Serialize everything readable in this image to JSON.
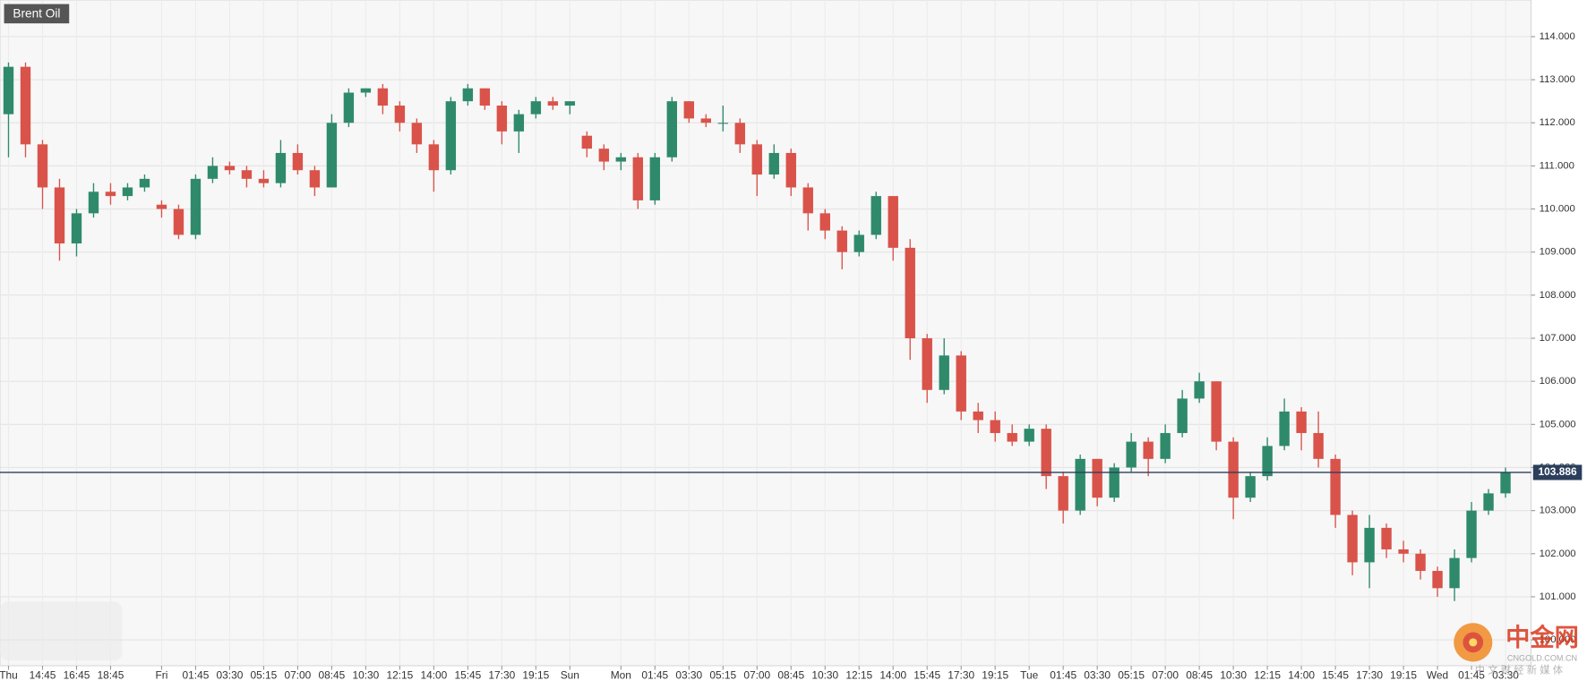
{
  "chart_data": {
    "type": "candlestick",
    "title": "Brent Oil",
    "categories": [
      "Thu",
      null,
      "14:45",
      null,
      "16:45",
      null,
      "18:45",
      null,
      null,
      "Fri",
      null,
      "01:45",
      null,
      "03:30",
      null,
      "05:15",
      null,
      "07:00",
      null,
      "08:45",
      null,
      "10:30",
      null,
      "12:15",
      null,
      "14:00",
      null,
      "15:45",
      null,
      "17:30",
      null,
      "19:15",
      null,
      "Sun",
      null,
      null,
      "Mon",
      null,
      "01:45",
      null,
      "03:30",
      null,
      "05:15",
      null,
      "07:00",
      null,
      "08:45",
      null,
      "10:30",
      null,
      "12:15",
      null,
      "14:00",
      null,
      "15:45",
      null,
      "17:30",
      null,
      "19:15",
      null,
      "Tue",
      null,
      "01:45",
      null,
      "03:30",
      null,
      "05:15",
      null,
      "07:00",
      null,
      "08:45",
      null,
      "10:30",
      null,
      "12:15",
      null,
      "14:00",
      null,
      "15:45",
      null,
      "17:30",
      null,
      "19:15",
      null,
      "Wed",
      null,
      "01:45",
      null,
      "03:30",
      null
    ],
    "open": [
      112.2,
      113.3,
      111.5,
      110.5,
      109.2,
      109.9,
      110.4,
      110.3,
      110.5,
      110.1,
      110.0,
      109.4,
      110.7,
      111.0,
      110.9,
      110.7,
      110.6,
      111.3,
      110.9,
      110.5,
      112.0,
      112.7,
      112.8,
      112.4,
      112.0,
      111.5,
      110.9,
      112.5,
      112.8,
      112.4,
      111.8,
      112.2,
      112.5,
      112.4,
      111.7,
      111.4,
      111.1,
      111.2,
      110.2,
      111.2,
      112.5,
      112.1,
      112.0,
      112.0,
      111.5,
      110.8,
      111.3,
      110.5,
      109.9,
      109.5,
      109.0,
      109.4,
      110.3,
      109.1,
      107.0,
      105.8,
      106.6,
      105.3,
      105.1,
      104.8,
      104.6,
      104.9,
      103.8,
      103.0,
      104.2,
      103.3,
      104.0,
      104.6,
      104.2,
      104.8,
      105.6,
      106.0,
      104.6,
      103.3,
      103.8,
      104.5,
      105.3,
      104.8,
      104.2,
      102.9,
      101.8,
      102.6,
      102.1,
      102.0,
      101.6,
      101.2,
      101.9,
      103.0,
      103.4,
      null
    ],
    "high": [
      113.4,
      113.4,
      111.6,
      110.7,
      110.0,
      110.6,
      110.6,
      110.6,
      110.8,
      110.2,
      110.1,
      110.8,
      111.2,
      111.1,
      111.0,
      110.9,
      111.6,
      111.5,
      111.0,
      112.2,
      112.8,
      112.8,
      112.9,
      112.5,
      112.1,
      111.6,
      112.6,
      112.9,
      112.8,
      112.5,
      112.3,
      112.6,
      112.6,
      112.5,
      111.8,
      111.5,
      111.3,
      111.3,
      111.3,
      112.6,
      112.5,
      112.2,
      112.4,
      112.1,
      111.6,
      111.5,
      111.4,
      110.6,
      110.0,
      109.6,
      109.5,
      110.4,
      110.3,
      109.3,
      107.1,
      107.0,
      106.7,
      105.5,
      105.3,
      105.0,
      105.0,
      105.0,
      103.9,
      104.3,
      104.2,
      104.1,
      104.8,
      104.7,
      105.0,
      105.8,
      106.2,
      106.0,
      104.7,
      103.9,
      104.7,
      105.6,
      105.4,
      105.3,
      104.3,
      103.0,
      102.9,
      102.7,
      102.3,
      102.1,
      101.7,
      102.1,
      103.2,
      103.5,
      104.0,
      null
    ],
    "low": [
      111.2,
      111.2,
      110.0,
      108.8,
      108.9,
      109.8,
      110.1,
      110.2,
      110.4,
      109.8,
      109.3,
      109.3,
      110.6,
      110.8,
      110.5,
      110.5,
      110.5,
      110.8,
      110.3,
      110.5,
      111.9,
      112.6,
      112.2,
      111.8,
      111.3,
      110.4,
      110.8,
      112.4,
      112.3,
      111.5,
      111.3,
      112.1,
      112.3,
      112.2,
      111.2,
      110.9,
      110.9,
      110.0,
      110.1,
      111.1,
      112.0,
      111.9,
      111.8,
      111.3,
      110.3,
      110.7,
      110.3,
      109.5,
      109.3,
      108.6,
      108.9,
      109.3,
      108.8,
      106.5,
      105.5,
      105.7,
      105.1,
      104.8,
      104.6,
      104.5,
      104.5,
      103.5,
      102.7,
      102.9,
      103.1,
      103.2,
      103.9,
      103.8,
      104.1,
      104.7,
      105.5,
      104.4,
      102.8,
      103.2,
      103.7,
      104.4,
      104.4,
      104.0,
      102.6,
      101.5,
      101.2,
      101.9,
      101.8,
      101.4,
      101.0,
      100.9,
      101.8,
      102.9,
      103.3,
      null
    ],
    "close": [
      113.3,
      111.5,
      110.5,
      109.2,
      109.9,
      110.4,
      110.3,
      110.5,
      110.7,
      110.0,
      109.4,
      110.7,
      111.0,
      110.9,
      110.7,
      110.6,
      111.3,
      110.9,
      110.5,
      112.0,
      112.7,
      112.8,
      112.4,
      112.0,
      111.5,
      110.9,
      112.5,
      112.8,
      112.4,
      111.8,
      112.2,
      112.5,
      112.4,
      112.5,
      111.4,
      111.1,
      111.2,
      110.2,
      111.2,
      112.5,
      112.1,
      112.0,
      112.0,
      111.5,
      110.8,
      111.3,
      110.5,
      109.9,
      109.5,
      109.0,
      109.4,
      110.3,
      109.1,
      107.0,
      105.8,
      106.6,
      105.3,
      105.1,
      104.8,
      104.6,
      104.9,
      103.8,
      103.0,
      104.2,
      103.3,
      104.0,
      104.6,
      104.2,
      104.8,
      105.6,
      106.0,
      104.6,
      103.3,
      103.8,
      104.5,
      105.3,
      104.8,
      104.2,
      102.9,
      101.8,
      102.6,
      102.1,
      102.0,
      101.6,
      101.2,
      101.9,
      103.0,
      103.4,
      103.886,
      null
    ],
    "up_color": "#2f8a6c",
    "down_color": "#d9534a",
    "last_price": {
      "value": 103.886,
      "label": "103.886",
      "color": "#2b3f5c"
    },
    "ylim": [
      99.4,
      114.85
    ],
    "yticks": [
      {
        "value": 100,
        "label": "100.000"
      },
      {
        "value": 101,
        "label": "101.000"
      },
      {
        "value": 102,
        "label": "102.000"
      },
      {
        "value": 103,
        "label": "103.000"
      },
      {
        "value": 104,
        "label": "104.000"
      },
      {
        "value": 105,
        "label": "105.000"
      },
      {
        "value": 106,
        "label": "106.000"
      },
      {
        "value": 107,
        "label": "107.000"
      },
      {
        "value": 108,
        "label": "108.000"
      },
      {
        "value": 109,
        "label": "109.000"
      },
      {
        "value": 110,
        "label": "110.000"
      },
      {
        "value": 111,
        "label": "111.000"
      },
      {
        "value": 112,
        "label": "112.000"
      },
      {
        "value": 113,
        "label": "113.000"
      },
      {
        "value": 114,
        "label": "114.000"
      }
    ],
    "grid": true,
    "watermark": {
      "name": "中金网",
      "site": "CNGOLD.COM.CN",
      "slogan": "中 文 财 经 新 媒 体"
    }
  }
}
